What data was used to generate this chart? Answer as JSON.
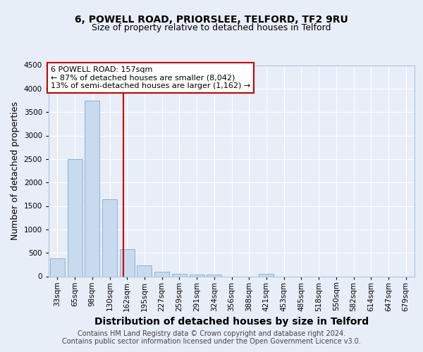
{
  "title": "6, POWELL ROAD, PRIORSLEE, TELFORD, TF2 9RU",
  "subtitle": "Size of property relative to detached houses in Telford",
  "xlabel": "Distribution of detached houses by size in Telford",
  "ylabel": "Number of detached properties",
  "categories": [
    "33sqm",
    "65sqm",
    "98sqm",
    "130sqm",
    "162sqm",
    "195sqm",
    "227sqm",
    "259sqm",
    "291sqm",
    "324sqm",
    "356sqm",
    "388sqm",
    "421sqm",
    "453sqm",
    "485sqm",
    "518sqm",
    "550sqm",
    "582sqm",
    "614sqm",
    "647sqm",
    "679sqm"
  ],
  "values": [
    380,
    2500,
    3750,
    1650,
    580,
    240,
    105,
    60,
    40,
    35,
    0,
    0,
    55,
    0,
    0,
    0,
    0,
    0,
    0,
    0,
    0
  ],
  "bar_color": "#c8daee",
  "bar_edge_color": "#7aabcf",
  "vline_x": 3.78,
  "vline_color": "#cc0000",
  "annotation_text": "6 POWELL ROAD: 157sqm\n← 87% of detached houses are smaller (8,042)\n13% of semi-detached houses are larger (1,162) →",
  "annotation_box_color": "#ffffff",
  "annotation_box_edge": "#cc0000",
  "ylim": [
    0,
    4500
  ],
  "yticks": [
    0,
    500,
    1000,
    1500,
    2000,
    2500,
    3000,
    3500,
    4000,
    4500
  ],
  "footer_line1": "Contains HM Land Registry data © Crown copyright and database right 2024.",
  "footer_line2": "Contains public sector information licensed under the Open Government Licence v3.0.",
  "bg_color": "#e8eef8",
  "plot_bg_color": "#e8eef8",
  "title_fontsize": 10,
  "subtitle_fontsize": 9,
  "axis_label_fontsize": 9,
  "tick_fontsize": 7.5,
  "footer_fontsize": 7
}
